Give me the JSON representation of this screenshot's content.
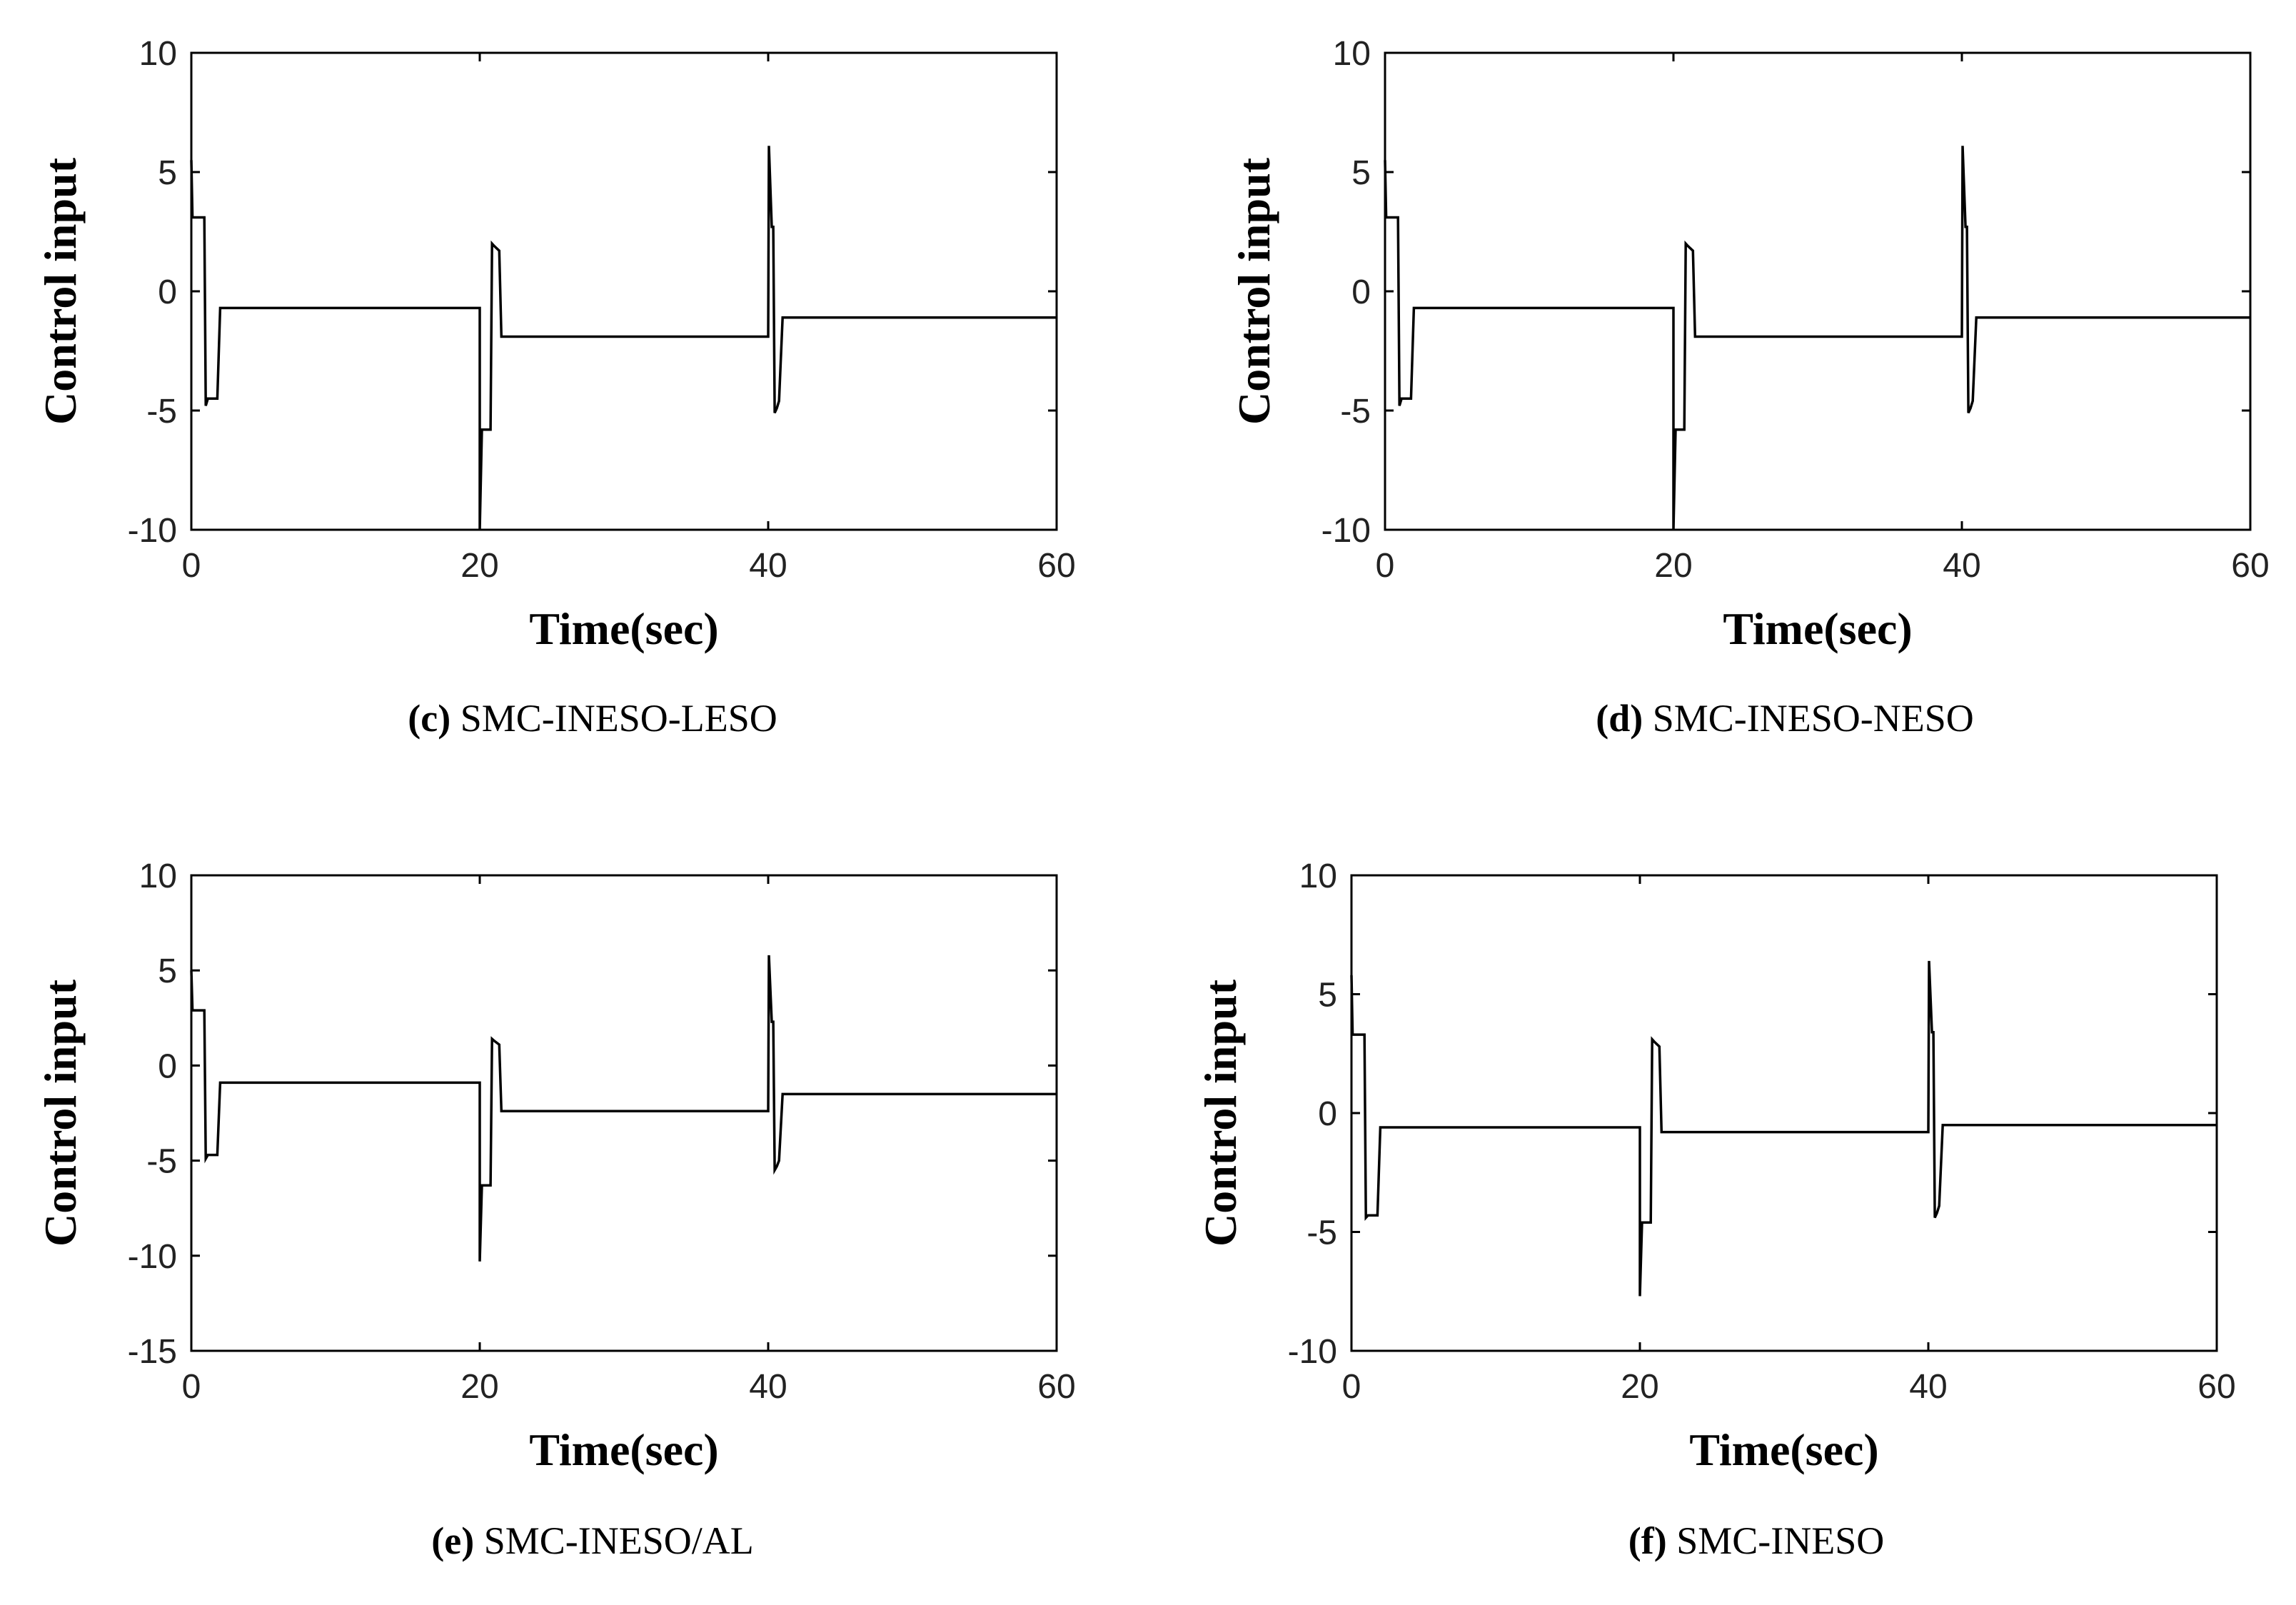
{
  "chart_data": [
    {
      "type": "line",
      "panel": "c",
      "caption_letter": "(c)",
      "caption_text": "SMC-INESO-LESO",
      "xlabel": "Time(sec)",
      "ylabel": "Control input",
      "xlim": [
        0,
        60
      ],
      "ylim": [
        -10,
        10
      ],
      "xticks": [
        0,
        20,
        40,
        60
      ],
      "yticks": [
        -10,
        -5,
        0,
        5,
        10
      ],
      "series": [
        {
          "name": "Control input",
          "color": "#000000",
          "x": [
            0,
            0.08,
            0.15,
            0.9,
            1.0,
            1.15,
            1.8,
            2.0,
            20.0,
            20.0,
            20.15,
            20.25,
            20.75,
            20.85,
            21.0,
            21.35,
            21.5,
            40.0,
            40.05,
            40.25,
            40.35,
            40.45,
            40.6,
            40.75,
            41.0,
            60
          ],
          "values": [
            5.5,
            3.1,
            3.1,
            3.1,
            -4.8,
            -4.5,
            -4.5,
            -0.7,
            -0.7,
            -10,
            -5.8,
            -5.8,
            -5.8,
            2.0,
            1.9,
            1.7,
            -1.9,
            -1.9,
            6.1,
            2.7,
            2.7,
            -5.1,
            -4.9,
            -4.6,
            -1.1,
            -1.1
          ]
        }
      ]
    },
    {
      "type": "line",
      "panel": "d",
      "caption_letter": "(d)",
      "caption_text": "SMC-INESO-NESO",
      "xlabel": "Time(sec)",
      "ylabel": "Control input",
      "xlim": [
        0,
        60
      ],
      "ylim": [
        -10,
        10
      ],
      "xticks": [
        0,
        20,
        40,
        60
      ],
      "yticks": [
        -10,
        -5,
        0,
        5,
        10
      ],
      "series": [
        {
          "name": "Control input",
          "color": "#000000",
          "x": [
            0,
            0.08,
            0.15,
            0.9,
            1.0,
            1.15,
            1.8,
            2.0,
            20.0,
            20.0,
            20.15,
            20.25,
            20.75,
            20.85,
            21.0,
            21.35,
            21.5,
            40.0,
            40.05,
            40.25,
            40.35,
            40.45,
            40.6,
            40.75,
            41.0,
            60
          ],
          "values": [
            5.5,
            3.1,
            3.1,
            3.1,
            -4.8,
            -4.5,
            -4.5,
            -0.7,
            -0.7,
            -10,
            -5.8,
            -5.8,
            -5.8,
            2.0,
            1.9,
            1.7,
            -1.9,
            -1.9,
            6.1,
            2.7,
            2.7,
            -5.1,
            -4.9,
            -4.6,
            -1.1,
            -1.1
          ]
        }
      ]
    },
    {
      "type": "line",
      "panel": "e",
      "caption_letter": "(e)",
      "caption_text": "SMC-INESO/AL",
      "xlabel": "Time(sec)",
      "ylabel": "Control input",
      "xlim": [
        0,
        60
      ],
      "ylim": [
        -15,
        10
      ],
      "xticks": [
        0,
        20,
        40,
        60
      ],
      "yticks": [
        -15,
        -10,
        -5,
        0,
        5,
        10
      ],
      "series": [
        {
          "name": "Control input",
          "color": "#000000",
          "x": [
            0,
            0.08,
            0.15,
            0.9,
            1.0,
            1.15,
            1.8,
            2.0,
            20.0,
            20.0,
            20.15,
            20.25,
            20.75,
            20.85,
            21.0,
            21.35,
            21.5,
            40.0,
            40.05,
            40.25,
            40.35,
            40.45,
            40.6,
            40.75,
            41.0,
            60
          ],
          "values": [
            5.0,
            2.9,
            2.9,
            2.9,
            -4.9,
            -4.7,
            -4.7,
            -0.9,
            -0.9,
            -10.3,
            -6.3,
            -6.3,
            -6.3,
            1.4,
            1.3,
            1.1,
            -2.4,
            -2.4,
            5.8,
            2.3,
            2.3,
            -5.5,
            -5.3,
            -5.0,
            -1.5,
            -1.5
          ]
        }
      ]
    },
    {
      "type": "line",
      "panel": "f",
      "caption_letter": "(f)",
      "caption_text": "SMC-INESO",
      "xlabel": "Time(sec)",
      "ylabel": "Control input",
      "xlim": [
        0,
        60
      ],
      "ylim": [
        -10,
        10
      ],
      "xticks": [
        0,
        20,
        40,
        60
      ],
      "yticks": [
        -10,
        -5,
        0,
        5,
        10
      ],
      "series": [
        {
          "name": "Control input",
          "color": "#000000",
          "x": [
            0,
            0.08,
            0.15,
            0.9,
            1.0,
            1.15,
            1.8,
            2.0,
            20.0,
            20.0,
            20.15,
            20.25,
            20.75,
            20.85,
            21.0,
            21.35,
            21.5,
            40.0,
            40.05,
            40.25,
            40.35,
            40.45,
            40.6,
            40.75,
            41.0,
            60
          ],
          "values": [
            5.8,
            3.3,
            3.3,
            3.3,
            -4.4,
            -4.3,
            -4.3,
            -0.6,
            -0.6,
            -7.7,
            -4.6,
            -4.6,
            -4.6,
            3.1,
            3.0,
            2.8,
            -0.8,
            -0.8,
            6.4,
            3.4,
            3.4,
            -4.4,
            -4.2,
            -3.9,
            -0.5,
            -0.5
          ]
        }
      ]
    }
  ]
}
